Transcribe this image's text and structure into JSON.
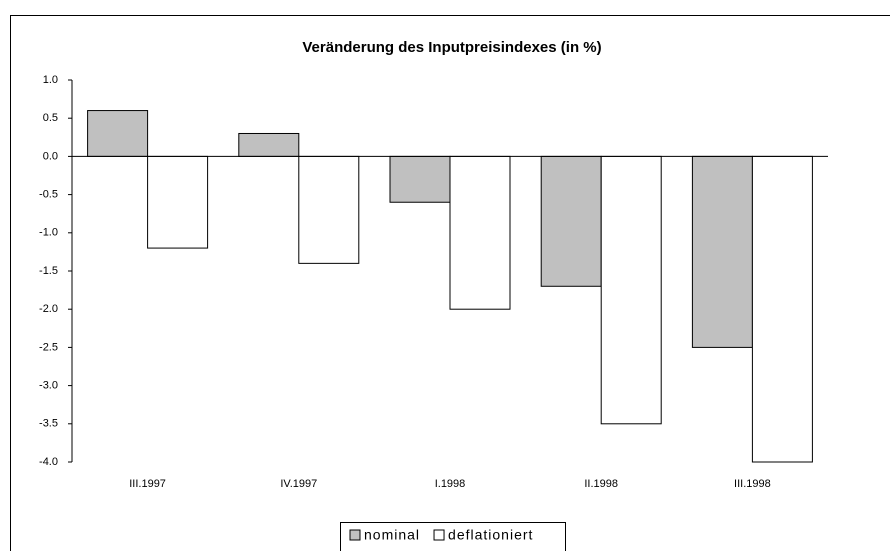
{
  "chart_data": {
    "type": "bar",
    "title": "Veränderung des Inputpreisindexes (in %)",
    "categories": [
      "III.1997",
      "IV.1997",
      "I.1998",
      "II.1998",
      "III.1998"
    ],
    "series": [
      {
        "name": "nominal",
        "color": "#c0c0c0",
        "values": [
          0.6,
          0.3,
          -0.6,
          -1.7,
          -2.5
        ]
      },
      {
        "name": "deflationiert",
        "color": "#ffffff",
        "values": [
          -1.2,
          -1.4,
          -2.0,
          -3.5,
          -4.0
        ]
      }
    ],
    "ylim": [
      -4,
      1
    ],
    "yticks": [
      {
        "value": -4,
        "label": "-4.0"
      },
      -3.5,
      {
        "value": -3,
        "label": "-3.0"
      },
      -2.5,
      {
        "value": -2,
        "label": "-2.0"
      },
      -1.5,
      {
        "value": -1,
        "label": "-1.0"
      },
      -0.5,
      {
        "value": 0,
        "label": "0.0"
      },
      0.5,
      {
        "value": 1,
        "label": "1.0"
      }
    ],
    "grid": false,
    "legend": "bottom"
  }
}
